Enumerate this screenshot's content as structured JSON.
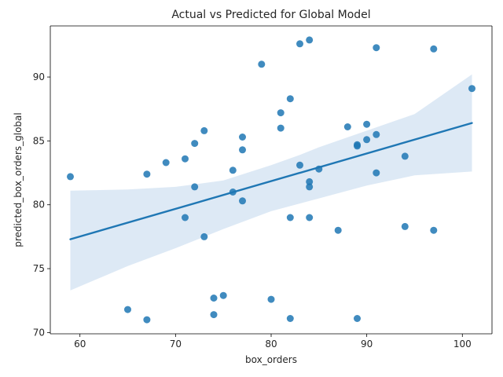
{
  "chart_data": {
    "type": "scatter",
    "title": "Actual vs Predicted for Global Model",
    "xlabel": "box_orders",
    "ylabel": "predicted_box_orders_global",
    "xlim": [
      56.9,
      103.1
    ],
    "ylim": [
      69.9,
      94.0
    ],
    "xticks": [
      60,
      70,
      80,
      90,
      100
    ],
    "yticks": [
      70,
      75,
      80,
      85,
      90
    ],
    "point_color": "#1f77b4",
    "line_color": "#1f77b4",
    "band_color": "#c6dbef",
    "regression": {
      "x": [
        59,
        101
      ],
      "y": [
        77.3,
        86.4
      ]
    },
    "band": {
      "x": [
        59,
        65,
        70,
        75,
        80,
        83,
        85,
        90,
        95,
        101
      ],
      "upper": [
        81.1,
        81.2,
        81.4,
        81.9,
        83.1,
        83.9,
        84.5,
        85.8,
        87.1,
        90.2
      ],
      "lower": [
        73.3,
        75.2,
        76.6,
        78.1,
        79.5,
        80.1,
        80.5,
        81.5,
        82.3,
        82.6
      ]
    },
    "points": [
      {
        "x": 59,
        "y": 82.2
      },
      {
        "x": 65,
        "y": 71.8
      },
      {
        "x": 67,
        "y": 82.4
      },
      {
        "x": 67,
        "y": 71.0
      },
      {
        "x": 69,
        "y": 83.3
      },
      {
        "x": 71,
        "y": 83.6
      },
      {
        "x": 71,
        "y": 79.0
      },
      {
        "x": 72,
        "y": 84.8
      },
      {
        "x": 72,
        "y": 81.4
      },
      {
        "x": 73,
        "y": 85.8
      },
      {
        "x": 73,
        "y": 77.5
      },
      {
        "x": 74,
        "y": 72.7
      },
      {
        "x": 74,
        "y": 71.4
      },
      {
        "x": 75,
        "y": 72.9
      },
      {
        "x": 76,
        "y": 82.7
      },
      {
        "x": 76,
        "y": 81.0
      },
      {
        "x": 77,
        "y": 85.3
      },
      {
        "x": 77,
        "y": 84.3
      },
      {
        "x": 77,
        "y": 80.3
      },
      {
        "x": 79,
        "y": 91.0
      },
      {
        "x": 80,
        "y": 72.6
      },
      {
        "x": 81,
        "y": 87.2
      },
      {
        "x": 81,
        "y": 86.0
      },
      {
        "x": 82,
        "y": 88.3
      },
      {
        "x": 82,
        "y": 79.0
      },
      {
        "x": 82,
        "y": 71.1
      },
      {
        "x": 83,
        "y": 92.6
      },
      {
        "x": 83,
        "y": 83.1
      },
      {
        "x": 84,
        "y": 92.9
      },
      {
        "x": 84,
        "y": 81.8
      },
      {
        "x": 84,
        "y": 81.4
      },
      {
        "x": 84,
        "y": 79.0
      },
      {
        "x": 85,
        "y": 82.8
      },
      {
        "x": 87,
        "y": 78.0
      },
      {
        "x": 88,
        "y": 86.1
      },
      {
        "x": 89,
        "y": 84.7
      },
      {
        "x": 89,
        "y": 84.6
      },
      {
        "x": 89,
        "y": 71.1
      },
      {
        "x": 90,
        "y": 86.3
      },
      {
        "x": 90,
        "y": 85.1
      },
      {
        "x": 91,
        "y": 92.3
      },
      {
        "x": 91,
        "y": 85.5
      },
      {
        "x": 91,
        "y": 82.5
      },
      {
        "x": 94,
        "y": 83.8
      },
      {
        "x": 94,
        "y": 78.3
      },
      {
        "x": 97,
        "y": 92.2
      },
      {
        "x": 97,
        "y": 78.0
      },
      {
        "x": 101,
        "y": 89.1
      }
    ]
  }
}
